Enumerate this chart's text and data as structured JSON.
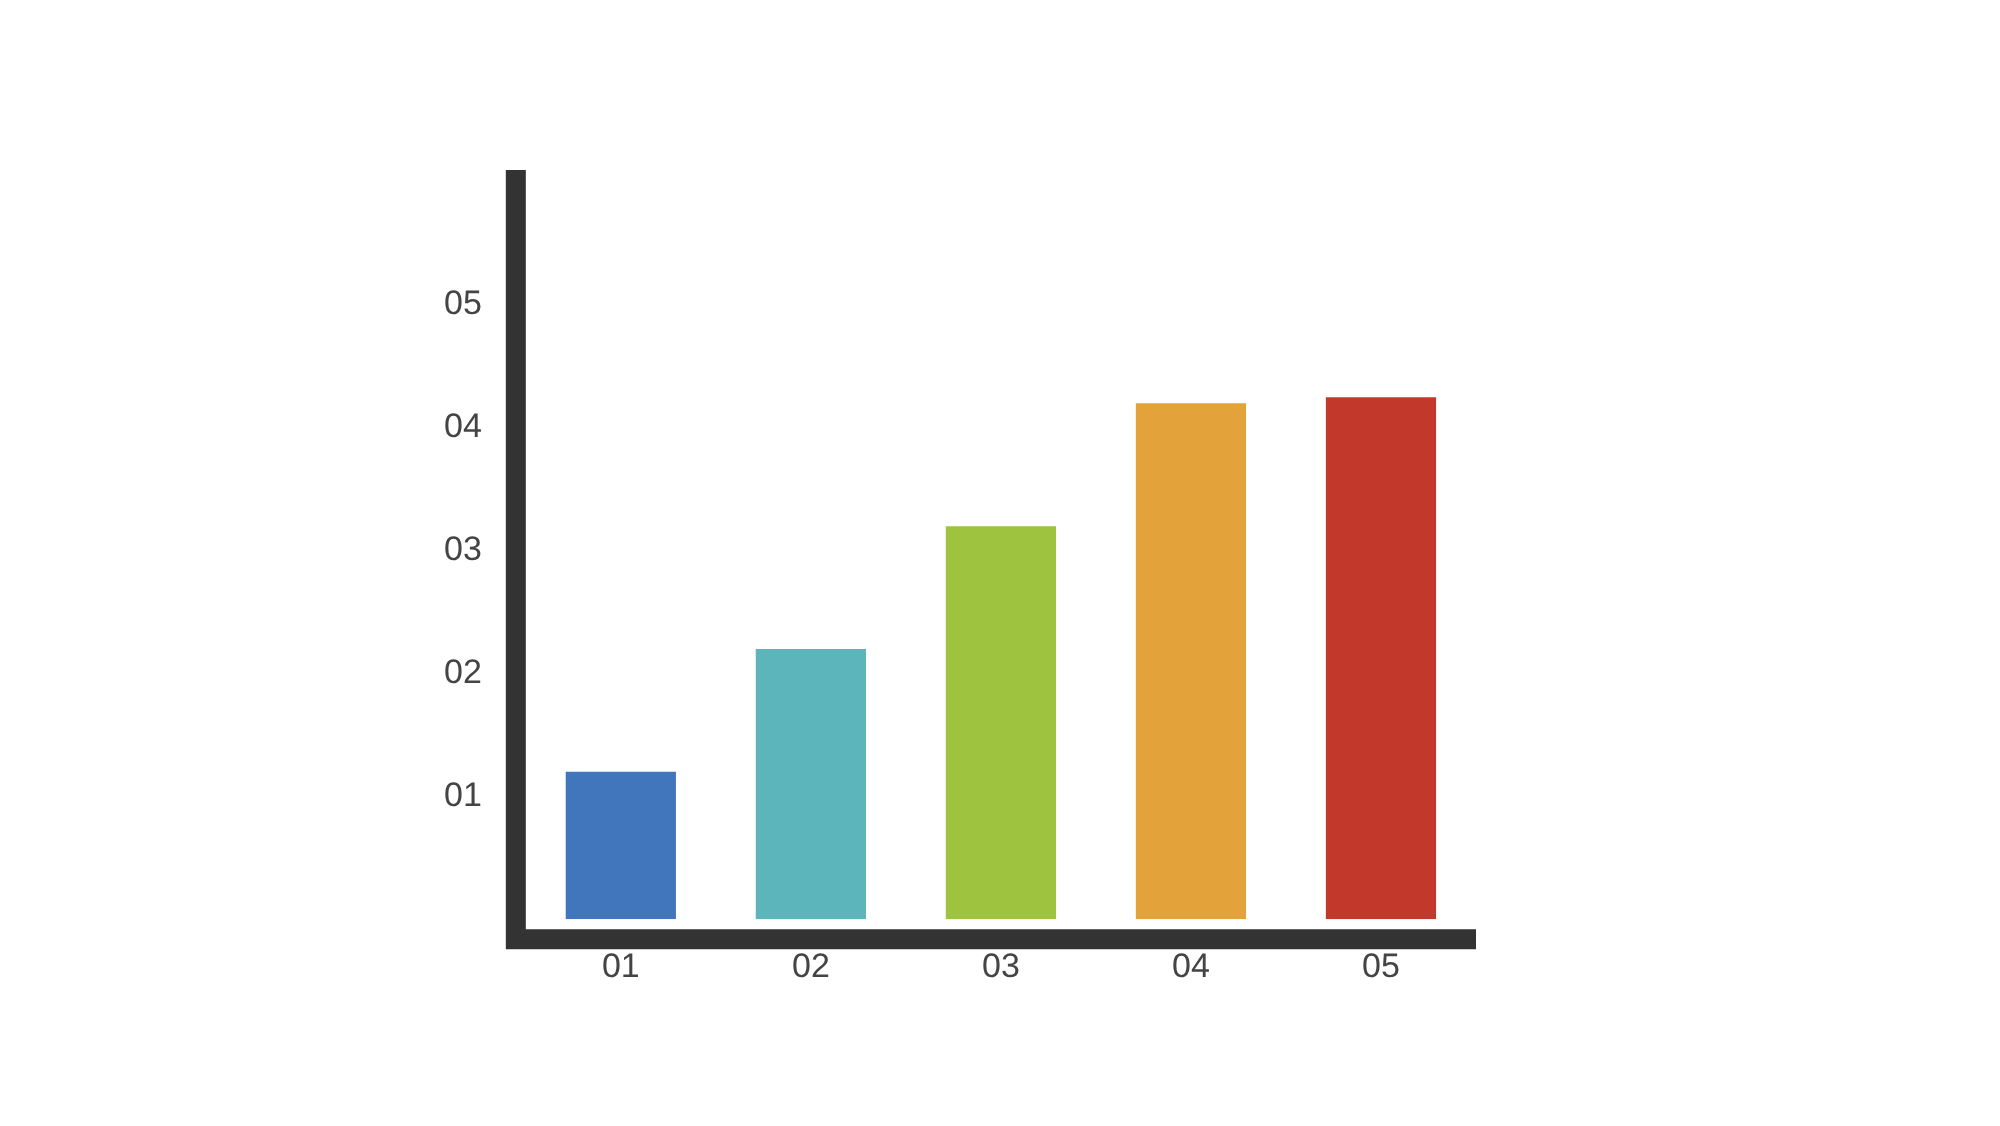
{
  "chart_data": {
    "type": "bar",
    "categories": [
      "01",
      "02",
      "03",
      "04",
      "05"
    ],
    "values": [
      1.2,
      2.2,
      3.2,
      4.2,
      4.25
    ],
    "colors": [
      "#4176bc",
      "#5bb5bb",
      "#9ec33f",
      "#e3a23a",
      "#c2392b"
    ],
    "ylim": [
      0,
      6.1
    ],
    "yticks": [
      {
        "value": 1,
        "label": "01"
      },
      {
        "value": 2,
        "label": "02"
      },
      {
        "value": 3,
        "label": "03"
      },
      {
        "value": 4,
        "label": "04"
      },
      {
        "value": 5,
        "label": "05"
      }
    ],
    "grid": false,
    "legend": false
  }
}
